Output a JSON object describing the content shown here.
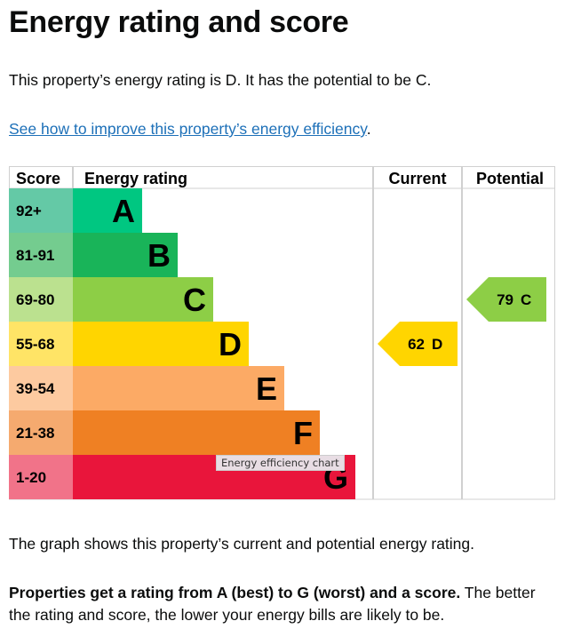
{
  "title": "Energy rating and score",
  "intro": "This property’s energy rating is D. It has the potential to be C.",
  "improve_link": "See how to improve this property’s energy efficiency",
  "improve_link_suffix": ".",
  "chart": {
    "headers": {
      "score": "Score",
      "rating": "Energy rating",
      "current": "Current",
      "potential": "Potential"
    },
    "bands": [
      {
        "letter": "A",
        "range": "92+",
        "color": "#00c781",
        "light": "#64c9a6"
      },
      {
        "letter": "B",
        "range": "81-91",
        "color": "#19b459",
        "light": "#74cc8f"
      },
      {
        "letter": "C",
        "range": "69-80",
        "color": "#8dce46",
        "light": "#bbe18f"
      },
      {
        "letter": "D",
        "range": "55-68",
        "color": "#ffd500",
        "light": "#ffe466"
      },
      {
        "letter": "E",
        "range": "39-54",
        "color": "#fcaa65",
        "light": "#fdcaa0"
      },
      {
        "letter": "F",
        "range": "21-38",
        "color": "#ef8023",
        "light": "#f5aa6f"
      },
      {
        "letter": "G",
        "range": "1-20",
        "color": "#e9153b",
        "light": "#f17389"
      }
    ],
    "current": {
      "score": "62",
      "letter": "D",
      "band_index": 3,
      "color": "#ffd500"
    },
    "potential": {
      "score": "79",
      "letter": "C",
      "band_index": 2,
      "color": "#8dce46"
    },
    "tooltip": "Energy efficiency chart"
  },
  "graph_text": "The graph shows this property’s current and potential energy rating.",
  "rating_bold": "Properties get a rating from A (best) to G (worst) and a score.",
  "rating_rest": " The better the rating and score, the lower your energy bills are likely to be."
}
